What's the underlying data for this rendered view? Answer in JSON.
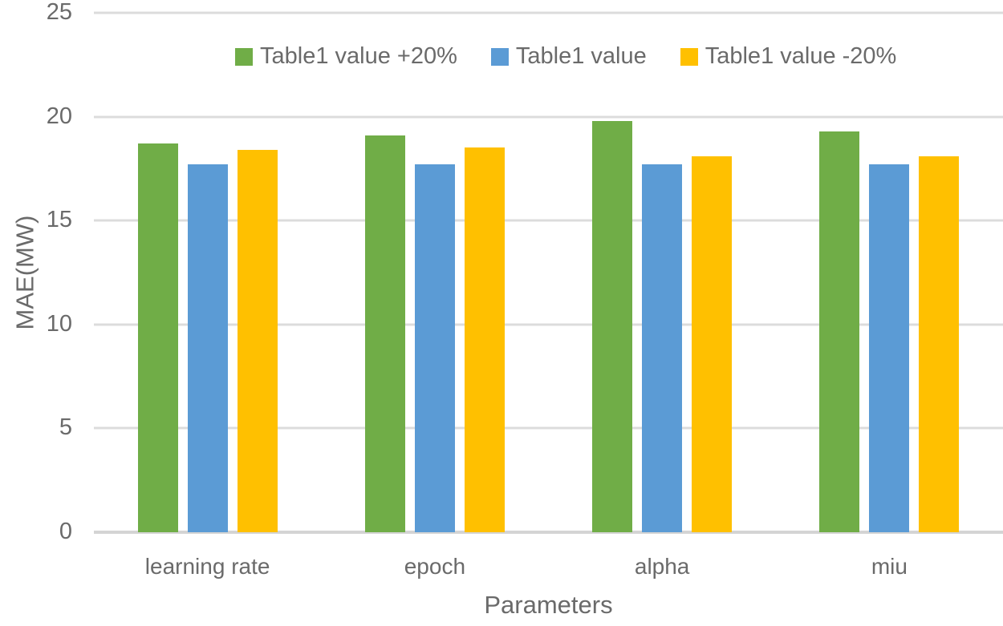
{
  "chart_data": {
    "type": "bar",
    "title": "",
    "categories": [
      "learning rate",
      "epoch",
      "alpha",
      "miu"
    ],
    "series": [
      {
        "name": "Table1 value +20%",
        "color": "#70AD47",
        "values": [
          18.7,
          19.1,
          19.8,
          19.3
        ]
      },
      {
        "name": "Table1 value",
        "color": "#5B9BD5",
        "values": [
          17.7,
          17.7,
          17.7,
          17.7
        ]
      },
      {
        "name": "Table1 value -20%",
        "color": "#FFC000",
        "values": [
          18.4,
          18.5,
          18.1,
          18.1
        ]
      }
    ],
    "xlabel": "Parameters",
    "ylabel": "MAE(MW)",
    "ylim": [
      0,
      25
    ],
    "yticks": [
      0,
      5,
      10,
      15,
      20,
      25
    ],
    "grid": true,
    "legend_position": "top"
  },
  "colors": {
    "gridline": "#dcdcdc",
    "axis_line": "#d4d4d4",
    "text": "#6a6a6a",
    "background": "#ffffff"
  }
}
